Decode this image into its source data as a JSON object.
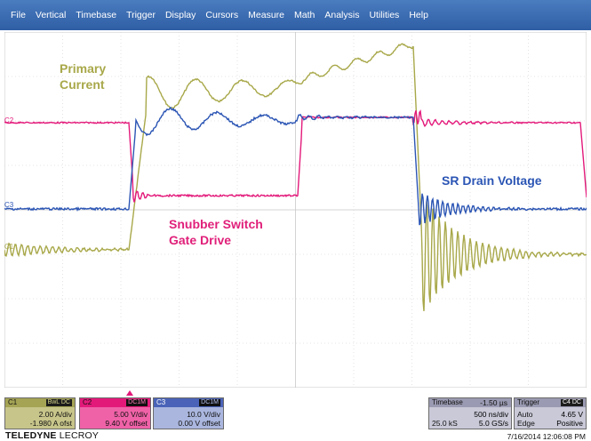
{
  "menu": [
    "File",
    "Vertical",
    "Timebase",
    "Trigger",
    "Display",
    "Cursors",
    "Measure",
    "Math",
    "Analysis",
    "Utilities",
    "Help"
  ],
  "labels": {
    "primary_line1": "Primary",
    "primary_line2": "Current",
    "snubber_line1": "Snubber Switch",
    "snubber_line2": "Gate Drive",
    "sr": "SR Drain Voltage"
  },
  "channel_markers": {
    "c1": "C1",
    "c2": "C2",
    "c3": "C3"
  },
  "channels": [
    {
      "name": "C1",
      "tag": "BwL DC",
      "line1": "2.00 A/div",
      "line2": "-1.980 A ofst",
      "color": "#a8a84a"
    },
    {
      "name": "C2",
      "tag": "DC1M",
      "line1": "5.00 V/div",
      "line2": "9.40 V offset",
      "color": "#e3197a"
    },
    {
      "name": "C3",
      "tag": "DC1M",
      "line1": "10.0 V/div",
      "line2": "0.00 V offset",
      "color": "#2b55b4"
    }
  ],
  "timebase": {
    "label": "Timebase",
    "value": "-1.50 µs",
    "per_div": "500 ns/div",
    "samples": "25.0 kS",
    "rate": "5.0 GS/s"
  },
  "trigger": {
    "label": "Trigger",
    "tag": "C4 DC",
    "mode": "Auto",
    "level": "4.65 V",
    "type": "Edge",
    "slope": "Positive"
  },
  "brand": {
    "part1": "TELEDYNE",
    "part2": "LECROY"
  },
  "timestamp": "7/16/2014 12:06:08 PM",
  "colors": {
    "c1": "#a8a84a",
    "c2": "#e3197a",
    "c3": "#2b55b4",
    "menu": "#3b6db3"
  }
}
